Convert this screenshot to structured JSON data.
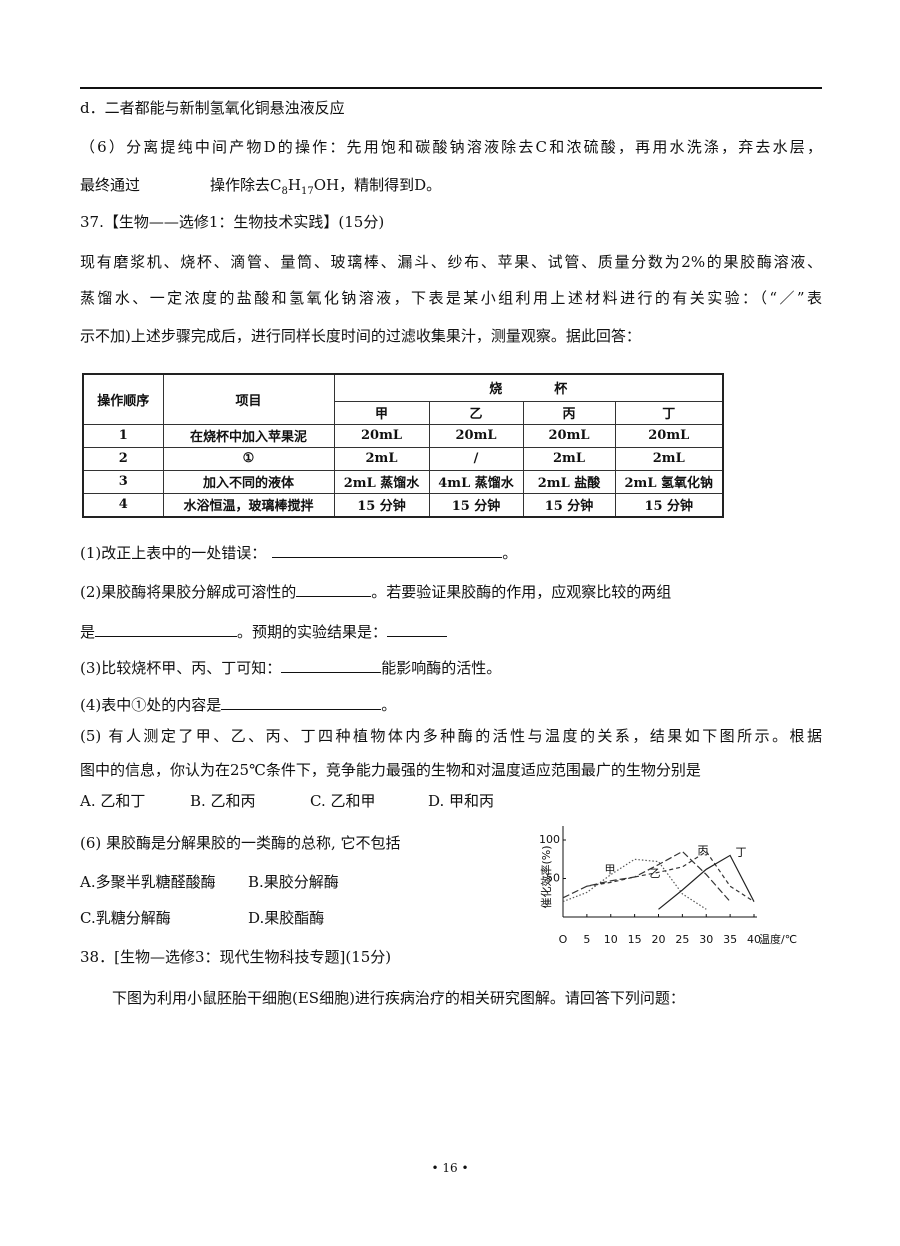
{
  "header_line": "d．二者都能与新制氢氧化铜悬浊液反应",
  "q36_6": {
    "line1": "（6）分离提纯中间产物D的操作：先用饱和碳酸钠溶液除去C和浓硫酸，再用水洗涤，弃去水层，",
    "line2": [
      "最终通过",
      "操作除去C",
      "8",
      "H",
      "17",
      "OH，精制得到D。"
    ]
  },
  "q37": {
    "title": "37.【生物——选修1：生物技术实践】(15分)",
    "intro": [
      "现有磨浆机、烧杯、滴管、量筒、玻璃棒、漏斗、纱布、苹果、试管、质量分数为2%的果胶酶溶液、",
      "蒸馏水、一定浓度的盐酸和氢氧化钠溶液，下表是某小组利用上述材料进行的有关实验：（“／”表",
      "示不加)上述步骤完成后，进行同样长度时间的过滤收集果汁，测量观察。据此回答："
    ],
    "table": {
      "header": [
        "操作顺序",
        "项目",
        "烧　　　　杯"
      ],
      "subheader": [
        "甲",
        "乙",
        "丙",
        "丁"
      ],
      "rows": [
        [
          "1",
          "在烧杯中加入苹果泥",
          "20mL",
          "20mL",
          "20mL",
          "20mL"
        ],
        [
          "2",
          "①",
          "2mL",
          "/",
          "2mL",
          "2mL"
        ],
        [
          "3",
          "加入不同的液体",
          "2mL 蒸馏水",
          "4mL 蒸馏水",
          "2mL 盐酸",
          "2mL 氢氧化钠"
        ],
        [
          "4",
          "水浴恒温，玻璃棒搅拌",
          "15 分钟",
          "15 分钟",
          "15 分钟",
          "15 分钟"
        ]
      ]
    },
    "q1": [
      "(1)改正上表中的一处错误：",
      "。"
    ],
    "q2": [
      "(2)果胶酶将果胶分解成可溶性的",
      "。若要验证果胶酶的作用，应观察比较的两组",
      "是",
      "。预期的实验结果是："
    ],
    "q3": [
      "(3)比较烧杯甲、丙、丁可知：",
      "能影响酶的活性。"
    ],
    "q4": [
      "(4)表中①处的内容是",
      "。"
    ],
    "q5": {
      "lines": [
        "(5) 有人测定了甲、乙、丙、丁四种植物体内多种酶的活性与温度的关系，结果如下图所示。根据",
        "图中的信息，你认为在25℃条件下，竞争能力最强的生物和对温度适应范围最广的生物分别是"
      ],
      "options": [
        "A. 乙和丁",
        "B. 乙和丙",
        "C. 乙和甲",
        "D. 甲和丙"
      ]
    },
    "q6": {
      "stem": "(6) 果胶酶是分解果胶的一类酶的总称, 它不包括",
      "options": [
        "A.多聚半乳糖醛酸酶",
        "B.果胶分解酶",
        "C.乳糖分解酶",
        "D.果胶酯酶"
      ]
    },
    "chart": {
      "type": "line",
      "x_label": "温度/℃",
      "y_label": "催化效率(%)",
      "x": [
        0,
        5,
        10,
        15,
        20,
        25,
        30,
        35,
        40
      ],
      "xlim": [
        0,
        40
      ],
      "ylim": [
        0,
        100
      ],
      "xticks": [
        {
          "value": 0,
          "label": "O"
        },
        5,
        10,
        15,
        20,
        25,
        30,
        35,
        40
      ],
      "yticks": [
        50,
        100
      ],
      "series": [
        {
          "name": "甲",
          "color": "#555555",
          "dash": "1.5,2",
          "values": [
            20,
            32,
            55,
            75,
            72,
            30,
            10,
            null,
            null
          ]
        },
        {
          "name": "乙",
          "color": "#333333",
          "dash": "7,3",
          "values": [
            25,
            40,
            47,
            52,
            68,
            85,
            55,
            20,
            null
          ]
        },
        {
          "name": "丙",
          "color": "#333333",
          "dash": "4,3",
          "values": [
            null,
            40,
            45,
            52,
            58,
            65,
            85,
            40,
            20
          ]
        },
        {
          "name": "丁",
          "color": "#222222",
          "dash": "none",
          "values": [
            null,
            null,
            null,
            null,
            10,
            35,
            62,
            80,
            20
          ]
        }
      ]
    }
  },
  "q38": {
    "title": "38．[生物—选修3：现代生物科技专题](15分)",
    "line": "下图为利用小鼠胚胎干细胞(ES细胞)进行疾病治疗的相关研究图解。请回答下列问题："
  },
  "page_number": "• 16 •"
}
